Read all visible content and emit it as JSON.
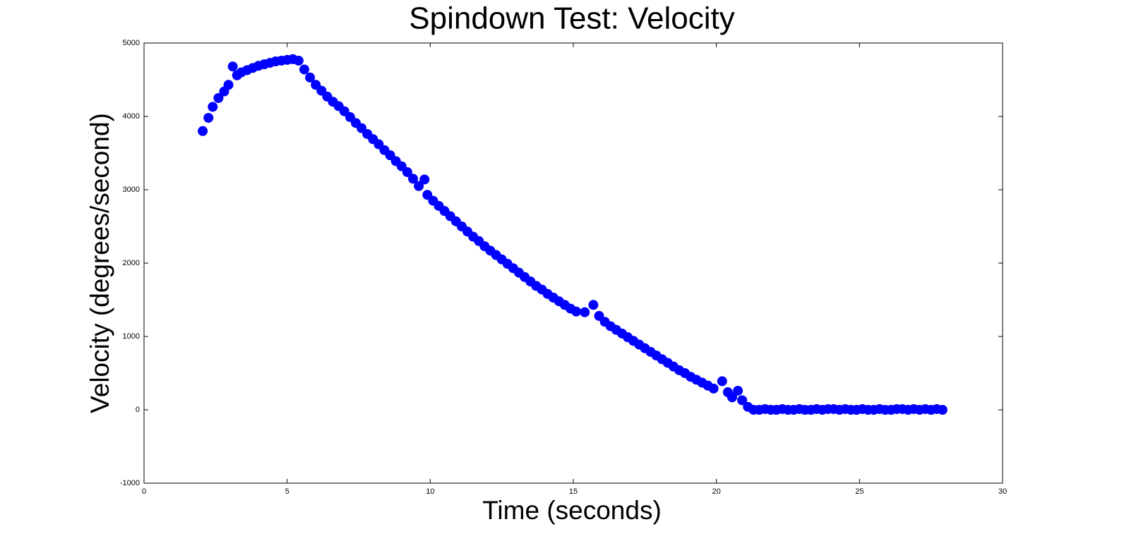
{
  "chart_data": {
    "type": "scatter",
    "title": "Spindown Test: Velocity",
    "x_label": "Time (seconds)",
    "y_label": "Velocity (degrees/second)",
    "color": "#0000ff",
    "x": [
      2.05,
      2.25,
      2.4,
      2.6,
      2.8,
      2.95,
      3.1,
      3.25,
      3.4,
      3.6,
      3.8,
      4.0,
      4.2,
      4.4,
      4.6,
      4.8,
      5.0,
      5.2,
      5.4,
      5.6,
      5.8,
      6.0,
      6.2,
      6.4,
      6.6,
      6.8,
      7.0,
      7.2,
      7.4,
      7.6,
      7.8,
      8.0,
      8.2,
      8.4,
      8.6,
      8.8,
      9.0,
      9.2,
      9.4,
      9.6,
      9.8,
      9.9,
      10.1,
      10.3,
      10.5,
      10.7,
      10.9,
      11.1,
      11.3,
      11.5,
      11.7,
      11.9,
      12.1,
      12.3,
      12.5,
      12.7,
      12.9,
      13.1,
      13.3,
      13.5,
      13.7,
      13.9,
      14.1,
      14.3,
      14.5,
      14.7,
      14.9,
      15.1,
      15.4,
      15.7,
      15.9,
      16.1,
      16.3,
      16.5,
      16.7,
      16.9,
      17.1,
      17.3,
      17.5,
      17.7,
      17.9,
      18.1,
      18.3,
      18.5,
      18.7,
      18.9,
      19.1,
      19.3,
      19.5,
      19.7,
      19.9,
      20.2,
      20.4,
      20.55,
      20.75,
      20.9,
      21.1,
      21.3,
      21.5,
      21.7,
      21.9,
      22.1,
      22.3,
      22.5,
      22.7,
      22.9,
      23.1,
      23.3,
      23.5,
      23.7,
      23.9,
      24.1,
      24.3,
      24.5,
      24.7,
      24.9,
      25.1,
      25.3,
      25.5,
      25.7,
      25.9,
      26.1,
      26.3,
      26.5,
      26.7,
      26.9,
      27.1,
      27.3,
      27.5,
      27.7,
      27.9
    ],
    "values": [
      3800,
      3980,
      4130,
      4250,
      4340,
      4430,
      4680,
      4560,
      4600,
      4630,
      4660,
      4690,
      4710,
      4730,
      4750,
      4760,
      4770,
      4780,
      4760,
      4640,
      4530,
      4430,
      4350,
      4270,
      4200,
      4140,
      4070,
      3990,
      3910,
      3840,
      3760,
      3690,
      3620,
      3540,
      3470,
      3390,
      3320,
      3240,
      3150,
      3050,
      3140,
      2930,
      2850,
      2780,
      2710,
      2640,
      2570,
      2500,
      2430,
      2360,
      2300,
      2230,
      2170,
      2110,
      2050,
      1990,
      1930,
      1870,
      1810,
      1750,
      1690,
      1640,
      1580,
      1530,
      1480,
      1430,
      1380,
      1340,
      1330,
      1430,
      1280,
      1200,
      1140,
      1090,
      1040,
      990,
      940,
      890,
      840,
      790,
      740,
      690,
      640,
      590,
      540,
      500,
      450,
      410,
      370,
      330,
      290,
      390,
      240,
      170,
      260,
      130,
      40,
      0,
      0,
      10,
      0,
      0,
      10,
      0,
      0,
      10,
      0,
      0,
      10,
      0,
      10,
      10,
      0,
      10,
      0,
      0,
      10,
      0,
      0,
      10,
      0,
      0,
      10,
      10,
      0,
      10,
      0,
      10,
      0,
      10,
      0
    ],
    "xlim": [
      0,
      30
    ],
    "xticks": [
      0,
      5,
      10,
      15,
      20,
      25,
      30
    ],
    "ylim": [
      -1000,
      5000
    ],
    "yticks": [
      -1000,
      0,
      1000,
      2000,
      3000,
      4000,
      5000
    ]
  }
}
